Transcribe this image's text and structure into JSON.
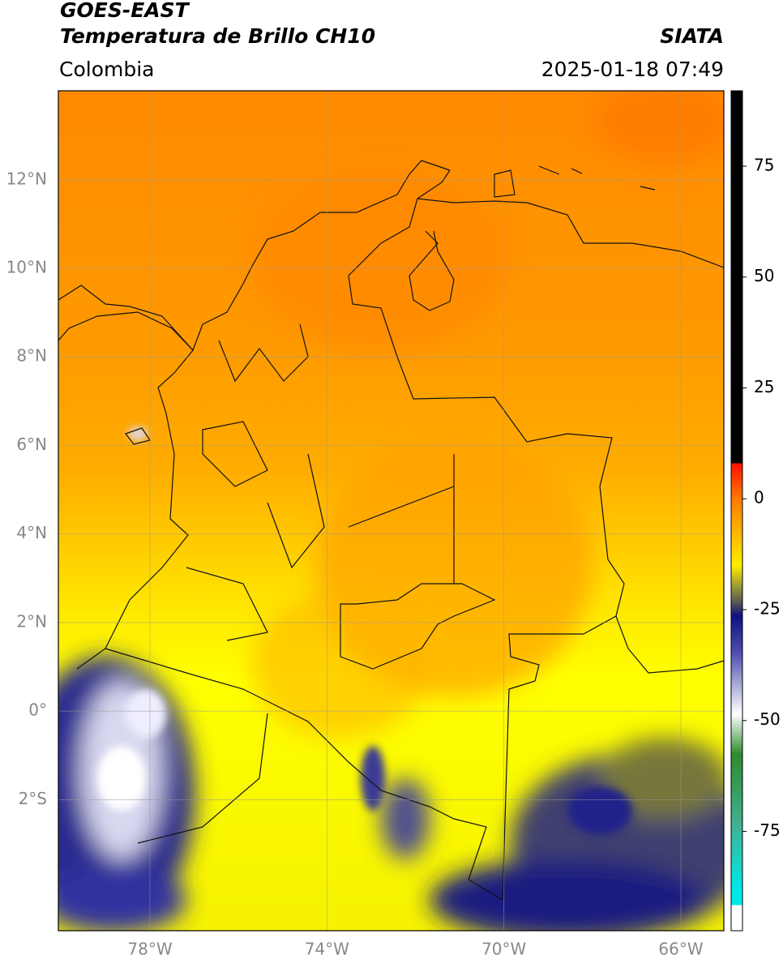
{
  "header": {
    "title": "GOES-EAST",
    "subtitle": "Temperatura de Brillo CH10",
    "source": "SIATA",
    "region": "Colombia",
    "datetime": "2025-01-18 07:49"
  },
  "map": {
    "lon_range": [
      -80.07,
      -65.03
    ],
    "lat_range": [
      -4.96,
      14.01
    ],
    "lon_ticks": [
      {
        "value": -78,
        "label": "78°W"
      },
      {
        "value": -74,
        "label": "74°W"
      },
      {
        "value": -70,
        "label": "70°W"
      },
      {
        "value": -66,
        "label": "66°W"
      }
    ],
    "lat_ticks": [
      {
        "value": 12,
        "label": "12°N"
      },
      {
        "value": 10,
        "label": "10°N"
      },
      {
        "value": 8,
        "label": "8°N"
      },
      {
        "value": 6,
        "label": "6°N"
      },
      {
        "value": 4,
        "label": "4°N"
      },
      {
        "value": 2,
        "label": "2°N"
      },
      {
        "value": 0,
        "label": "0°"
      },
      {
        "value": -2,
        "label": "2°S"
      }
    ],
    "grid": true
  },
  "colorbar": {
    "range": [
      -97.4,
      92
    ],
    "ticks": [
      75,
      50,
      25,
      0,
      -25,
      -50,
      -75
    ]
  }
}
